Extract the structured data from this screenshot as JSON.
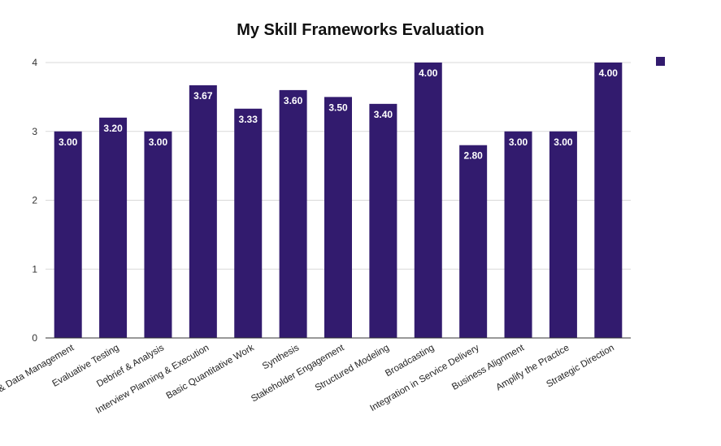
{
  "chart_data": {
    "type": "bar",
    "title": "My Skill Frameworks Evaluation",
    "xlabel": "",
    "ylabel": "",
    "ylim": [
      0,
      4
    ],
    "yticks": [
      0,
      1,
      2,
      3,
      4
    ],
    "grid": true,
    "legend_position": "top-right",
    "categories": [
      "& Data Management",
      "Evaluative Testing",
      "Debrief & Analysis",
      "Interview Planning & Execution",
      "Basic Quantitative Work",
      "Synthesis",
      "Stakeholder Engagement",
      "Structured Modeling",
      "Broadcasting",
      "Integration in Service Delivery",
      "Business Alignment",
      "Amplify the Practice",
      "Strategic Direction"
    ],
    "series": [
      {
        "values": [
          3.0,
          3.2,
          3.0,
          3.67,
          3.33,
          3.6,
          3.5,
          3.4,
          4.0,
          2.8,
          3.0,
          3.0,
          4.0
        ],
        "data_labels": [
          "3.00",
          "3.20",
          "3.00",
          "3.67",
          "3.33",
          "3.60",
          "3.50",
          "3.40",
          "4.00",
          "2.80",
          "3.00",
          "3.00",
          "4.00"
        ],
        "color": "#321b6e"
      }
    ],
    "colors": {
      "bar": "#321b6e",
      "grid": "#d9d9d9",
      "axis": "#333333",
      "label_text": "#ffffff"
    }
  }
}
